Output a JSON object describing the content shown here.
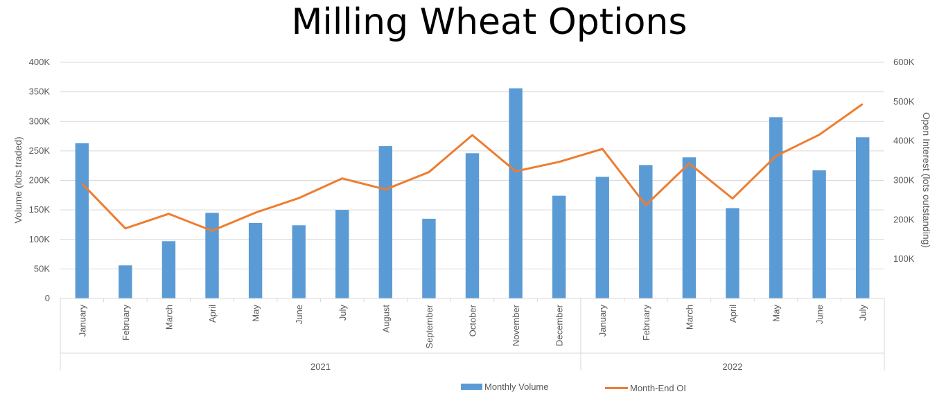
{
  "chart_data": {
    "type": "bar",
    "title": "Milling Wheat Options",
    "categories": [
      "January",
      "February",
      "March",
      "April",
      "May",
      "June",
      "July",
      "August",
      "September",
      "October",
      "November",
      "December",
      "January",
      "February",
      "March",
      "April",
      "May",
      "June",
      "July"
    ],
    "year_groups": [
      {
        "label": "2021",
        "count": 12
      },
      {
        "label": "2022",
        "count": 7
      }
    ],
    "series": [
      {
        "name": "Monthly Volume",
        "type": "bar",
        "axis": "left",
        "color": "#5b9bd5",
        "values": [
          263000,
          56000,
          97000,
          145000,
          128000,
          124000,
          150000,
          258000,
          135000,
          246000,
          356000,
          174000,
          206000,
          226000,
          239000,
          153000,
          307000,
          217000,
          273000
        ]
      },
      {
        "name": "Month-End OI",
        "type": "line",
        "axis": "right",
        "color": "#ed7d31",
        "values": [
          292000,
          178000,
          215000,
          172000,
          218000,
          255000,
          305000,
          277000,
          321000,
          415000,
          323000,
          347000,
          380000,
          237000,
          343000,
          254000,
          362000,
          416000,
          494000
        ]
      }
    ],
    "ylabel": "Volume (lots traded)",
    "ylabel_right": "Open Interest (lots outstanding)",
    "ylim": [
      0,
      400000
    ],
    "ylim_right": [
      0,
      600000
    ],
    "yticks": [
      "0",
      "50K",
      "100K",
      "150K",
      "200K",
      "250K",
      "300K",
      "350K",
      "400K"
    ],
    "yticks_right": [
      "",
      "100K",
      "200K",
      "300K",
      "400K",
      "500K",
      "600K"
    ],
    "grid": true,
    "legend": "bottom"
  }
}
